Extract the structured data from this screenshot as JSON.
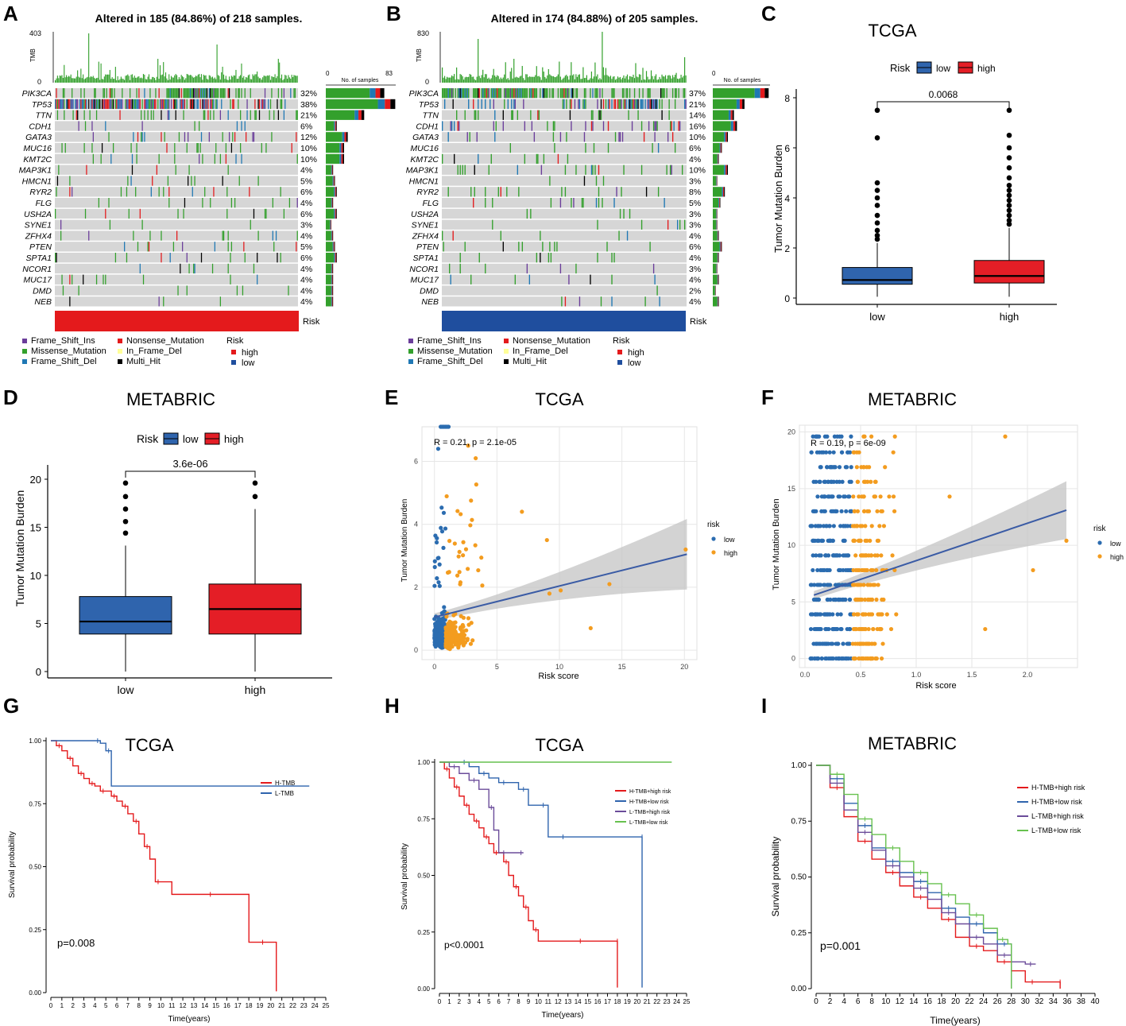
{
  "panel_labels": [
    "A",
    "B",
    "C",
    "D",
    "E",
    "F",
    "G",
    "H",
    "I"
  ],
  "colors": {
    "frame_shift_ins": "#6a3d9a",
    "missense": "#33a02c",
    "frame_shift_del": "#1f78b4",
    "nonsense": "#e31a1c",
    "in_frame_del": "#ffff99",
    "multi_hit": "#000000",
    "risk_high": "#e41a1c",
    "risk_low": "#1f4e9e",
    "box_low": "#2f64ad",
    "box_high": "#e41e26",
    "scatter_low": "#2b6cb0",
    "scatter_high": "#f39c1f",
    "reg_line": "#3a5ba5",
    "ci": "#bdbdbd",
    "km_red": "#e41a1c",
    "km_blue": "#2f64ad",
    "km_purple": "#6b4c9a",
    "km_green": "#67c14e"
  },
  "legend_mut": [
    "Frame_Shift_Ins",
    "Missense_Mutation",
    "Frame_Shift_Del",
    "Nonsense_Mutation",
    "In_Frame_Del",
    "Multi_Hit"
  ],
  "legend_risk": {
    "title": "Risk",
    "items": [
      "high",
      "low"
    ]
  },
  "chart_data": [
    {
      "id": "A",
      "type": "oncoplot",
      "title": "Altered in 185 (84.86%) of 218 samples.",
      "tmb_label": "TMB",
      "tmb_max": "403",
      "tmb_min": "0",
      "bar_min": "0",
      "bar_max": "83",
      "bar_label": "No. of samples",
      "risk_label": "Risk",
      "risk_group": "high",
      "genes": [
        "PIK3CA",
        "TP53",
        "TTN",
        "CDH1",
        "GATA3",
        "MUC16",
        "KMT2C",
        "MAP3K1",
        "HMCN1",
        "RYR2",
        "FLG",
        "USH2A",
        "SYNE1",
        "ZFHX4",
        "PTEN",
        "SPTA1",
        "NCOR1",
        "MUC17",
        "DMD",
        "NEB"
      ],
      "percents": [
        "32%",
        "38%",
        "21%",
        "6%",
        "12%",
        "10%",
        "10%",
        "4%",
        "5%",
        "6%",
        "4%",
        "6%",
        "3%",
        "4%",
        "5%",
        "6%",
        "4%",
        "4%",
        "4%",
        "4%"
      ]
    },
    {
      "id": "B",
      "type": "oncoplot",
      "title": "Altered in 174 (84.88%) of 205 samples.",
      "tmb_label": "TMB",
      "tmb_max": "830",
      "tmb_min": "0",
      "bar_min": "0",
      "bar_max": "",
      "bar_label": "No. of samples",
      "risk_label": "Risk",
      "risk_group": "low",
      "genes": [
        "PIK3CA",
        "TP53",
        "TTN",
        "CDH1",
        "GATA3",
        "MUC16",
        "KMT2C",
        "MAP3K1",
        "HMCN1",
        "RYR2",
        "FLG",
        "USH2A",
        "SYNE1",
        "ZFHX4",
        "PTEN",
        "SPTA1",
        "NCOR1",
        "MUC17",
        "DMD",
        "NEB"
      ],
      "percents": [
        "37%",
        "21%",
        "14%",
        "16%",
        "10%",
        "6%",
        "4%",
        "10%",
        "3%",
        "8%",
        "5%",
        "3%",
        "3%",
        "4%",
        "6%",
        "4%",
        "3%",
        "4%",
        "2%",
        "4%"
      ]
    },
    {
      "id": "C",
      "type": "box",
      "title": "TCGA",
      "legend_title": "Risk",
      "categories": [
        "low",
        "high"
      ],
      "ylabel": "Tumor Mutation Burden",
      "ylim": [
        0,
        8
      ],
      "yticks": [
        "0",
        "2",
        "4",
        "6",
        "8"
      ],
      "pvalue": "0.0068",
      "series": [
        {
          "name": "low",
          "q1": 0.55,
          "median": 0.72,
          "q3": 1.22,
          "whisker_lo": 0.05,
          "whisker_hi": 2.2,
          "outliers": [
            2.35,
            2.5,
            2.7,
            3.0,
            3.3,
            3.7,
            4.0,
            4.3,
            4.6,
            6.4,
            7.5
          ]
        },
        {
          "name": "high",
          "q1": 0.6,
          "median": 0.88,
          "q3": 1.5,
          "whisker_lo": 0.05,
          "whisker_hi": 2.8,
          "outliers": [
            2.95,
            3.1,
            3.3,
            3.5,
            3.7,
            3.9,
            4.1,
            4.3,
            4.5,
            4.8,
            5.2,
            5.6,
            6.0,
            6.5,
            7.5
          ]
        }
      ]
    },
    {
      "id": "D",
      "type": "box",
      "title": "METABRIC",
      "legend_title": "Risk",
      "categories": [
        "low",
        "high"
      ],
      "ylabel": "Tumor Mutation Burden",
      "ylim": [
        0,
        20
      ],
      "yticks": [
        "0",
        "5",
        "10",
        "15",
        "20"
      ],
      "pvalue": "3.6e-06",
      "series": [
        {
          "name": "low",
          "q1": 3.9,
          "median": 5.2,
          "q3": 7.8,
          "whisker_lo": 0,
          "whisker_hi": 13.1,
          "outliers": [
            14.4,
            15.6,
            16.9,
            18.2,
            19.6
          ]
        },
        {
          "name": "high",
          "q1": 3.9,
          "median": 6.5,
          "q3": 9.1,
          "whisker_lo": 0,
          "whisker_hi": 16.9,
          "outliers": [
            18.2,
            19.6
          ]
        }
      ]
    },
    {
      "id": "E",
      "type": "scatter",
      "title": "TCGA",
      "annotation": "R = 0.21, p = 2.1e-05",
      "xlabel": "Risk score",
      "ylabel": "Tumor Mutation Burden",
      "xlim": [
        -1,
        21
      ],
      "ylim": [
        -0.3,
        7.1
      ],
      "xticks": [
        "0",
        "5",
        "10",
        "15",
        "20"
      ],
      "yticks": [
        "0",
        "2",
        "4",
        "6"
      ],
      "legend_title": "risk",
      "legend": [
        "low",
        "high"
      ],
      "fit": {
        "x0": 0,
        "y0": 1.05,
        "x1": 20.2,
        "y1": 3.05
      }
    },
    {
      "id": "F",
      "type": "scatter",
      "title": "METABRIC",
      "annotation": "R = 0.19, p = 6e-09",
      "xlabel": "Risk score",
      "ylabel": "Tumor Mutation Burden",
      "xlim": [
        -0.05,
        2.45
      ],
      "ylim": [
        -0.8,
        20.6
      ],
      "xticks": [
        "0.0",
        "0.5",
        "1.0",
        "1.5",
        "2.0"
      ],
      "yticks": [
        "0",
        "5",
        "10",
        "15",
        "20"
      ],
      "legend_title": "risk",
      "legend": [
        "low",
        "high"
      ],
      "fit": {
        "x0": 0.08,
        "y0": 5.6,
        "x1": 2.35,
        "y1": 13.1
      }
    },
    {
      "id": "G",
      "type": "line",
      "title": "TCGA",
      "xlabel": "Time(years)",
      "ylabel": "Survival probability",
      "xticks": [
        "0",
        "1",
        "2",
        "3",
        "4",
        "5",
        "6",
        "7",
        "8",
        "9",
        "10",
        "11",
        "12",
        "13",
        "14",
        "15",
        "16",
        "17",
        "18",
        "19",
        "20",
        "21",
        "22",
        "23",
        "24",
        "25"
      ],
      "yticks": [
        "0.00",
        "0.25",
        "0.50",
        "0.75",
        "1.00"
      ],
      "pvalue": "p=0.008",
      "xmax": 25,
      "series": [
        {
          "name": "H-TMB",
          "color": "#e41a1c",
          "x": [
            0,
            0.5,
            1,
            1.5,
            2,
            2.5,
            3,
            3.5,
            4,
            4.5,
            5,
            5.5,
            6,
            6.5,
            7,
            7.5,
            8,
            8.5,
            9,
            9.5,
            10,
            11,
            18,
            18.01,
            20.5,
            20.5
          ],
          "y": [
            1,
            0.98,
            0.96,
            0.93,
            0.9,
            0.87,
            0.85,
            0.83,
            0.82,
            0.8,
            0.8,
            0.78,
            0.76,
            0.74,
            0.71,
            0.68,
            0.63,
            0.58,
            0.53,
            0.44,
            0.44,
            0.39,
            0.39,
            0.2,
            0.2,
            0.005
          ]
        },
        {
          "name": "L-TMB",
          "color": "#2f64ad",
          "x": [
            0,
            4,
            4.5,
            5,
            5.5,
            23.5
          ],
          "y": [
            1,
            1,
            0.99,
            0.96,
            0.82,
            0.82
          ]
        }
      ]
    },
    {
      "id": "H",
      "type": "line",
      "title": "TCGA",
      "xlabel": "Time(years)",
      "ylabel": "Survival probability",
      "xticks": [
        "0",
        "1",
        "2",
        "3",
        "4",
        "5",
        "6",
        "7",
        "8",
        "9",
        "10",
        "11",
        "12",
        "13",
        "14",
        "15",
        "16",
        "17",
        "18",
        "19",
        "20",
        "21",
        "22",
        "23",
        "24",
        "25"
      ],
      "yticks": [
        "0.00",
        "0.25",
        "0.50",
        "0.75",
        "1.00"
      ],
      "pvalue": "p<0.0001",
      "xmax": 25,
      "series": [
        {
          "name": "H-TMB+high risk",
          "color": "#e41a1c",
          "x": [
            0,
            0.5,
            1,
            1.5,
            2,
            2.5,
            3,
            3.5,
            4,
            4.5,
            5,
            5.5,
            6,
            6.5,
            7,
            7.5,
            8,
            8.5,
            9,
            9.5,
            10,
            11,
            17.5,
            18,
            18
          ],
          "y": [
            1,
            0.97,
            0.93,
            0.89,
            0.85,
            0.81,
            0.77,
            0.74,
            0.71,
            0.67,
            0.64,
            0.6,
            0.6,
            0.56,
            0.5,
            0.45,
            0.41,
            0.36,
            0.3,
            0.26,
            0.21,
            0.21,
            0.21,
            0.21,
            0.005
          ]
        },
        {
          "name": "H-TMB+low risk",
          "color": "#2f64ad",
          "x": [
            0,
            2,
            3,
            4,
            5,
            6,
            7,
            8,
            9,
            10,
            11,
            12,
            13,
            20.5,
            20.5
          ],
          "y": [
            1,
            1,
            0.98,
            0.95,
            0.93,
            0.91,
            0.91,
            0.88,
            0.81,
            0.81,
            0.67,
            0.67,
            0.67,
            0.67,
            0.005
          ]
        },
        {
          "name": "L-TMB+high risk",
          "color": "#6b4c9a",
          "x": [
            0,
            1,
            2,
            3,
            4,
            5,
            5.5,
            6,
            7,
            8,
            8.5
          ],
          "y": [
            1,
            0.98,
            0.95,
            0.92,
            0.88,
            0.8,
            0.7,
            0.6,
            0.6,
            0.6,
            0.6
          ]
        },
        {
          "name": "L-TMB+low risk",
          "color": "#67c14e",
          "x": [
            0,
            23.5
          ],
          "y": [
            1,
            1
          ]
        }
      ]
    },
    {
      "id": "I",
      "type": "line",
      "title": "METABRIC",
      "xlabel": "Time(years)",
      "ylabel": "Survival probability",
      "xticks": [
        "0",
        "2",
        "4",
        "6",
        "8",
        "10",
        "12",
        "14",
        "16",
        "18",
        "20",
        "22",
        "24",
        "26",
        "28",
        "30",
        "32",
        "34",
        "36",
        "38",
        "40"
      ],
      "yticks": [
        "0.00",
        "0.25",
        "0.50",
        "0.75",
        "1.00"
      ],
      "pvalue": "p=0.001",
      "xmax": 40,
      "series": [
        {
          "name": "H-TMB+high risk",
          "color": "#e41a1c",
          "x": [
            0,
            2,
            4,
            6,
            8,
            10,
            12,
            14,
            16,
            18,
            20,
            22,
            24,
            26,
            28,
            30,
            32,
            35,
            35
          ],
          "y": [
            1,
            0.9,
            0.77,
            0.66,
            0.58,
            0.52,
            0.46,
            0.41,
            0.36,
            0.31,
            0.23,
            0.19,
            0.17,
            0.12,
            0.08,
            0.03,
            0.03,
            0.03,
            0.0
          ]
        },
        {
          "name": "H-TMB+low risk",
          "color": "#2f64ad",
          "x": [
            0,
            2,
            4,
            6,
            8,
            10,
            12,
            14,
            16,
            18,
            20,
            22,
            24,
            26,
            28,
            28
          ],
          "y": [
            1,
            0.94,
            0.83,
            0.73,
            0.63,
            0.57,
            0.52,
            0.48,
            0.43,
            0.36,
            0.32,
            0.29,
            0.25,
            0.2,
            0.2,
            0.0
          ]
        },
        {
          "name": "L-TMB+high risk",
          "color": "#6b4c9a",
          "x": [
            0,
            2,
            4,
            6,
            8,
            10,
            12,
            14,
            16,
            18,
            20,
            22,
            24,
            26,
            28,
            30,
            31.5
          ],
          "y": [
            1,
            0.92,
            0.8,
            0.7,
            0.62,
            0.55,
            0.5,
            0.45,
            0.4,
            0.34,
            0.29,
            0.23,
            0.2,
            0.15,
            0.12,
            0.11,
            0.11
          ]
        },
        {
          "name": "L-TMB+low risk",
          "color": "#67c14e",
          "x": [
            0,
            2,
            4,
            6,
            8,
            10,
            12,
            14,
            16,
            18,
            20,
            22,
            24,
            26,
            27.5,
            28,
            28
          ],
          "y": [
            1,
            0.96,
            0.87,
            0.76,
            0.69,
            0.63,
            0.57,
            0.52,
            0.47,
            0.42,
            0.38,
            0.33,
            0.27,
            0.22,
            0.2,
            0.14,
            0.0
          ]
        }
      ]
    }
  ]
}
